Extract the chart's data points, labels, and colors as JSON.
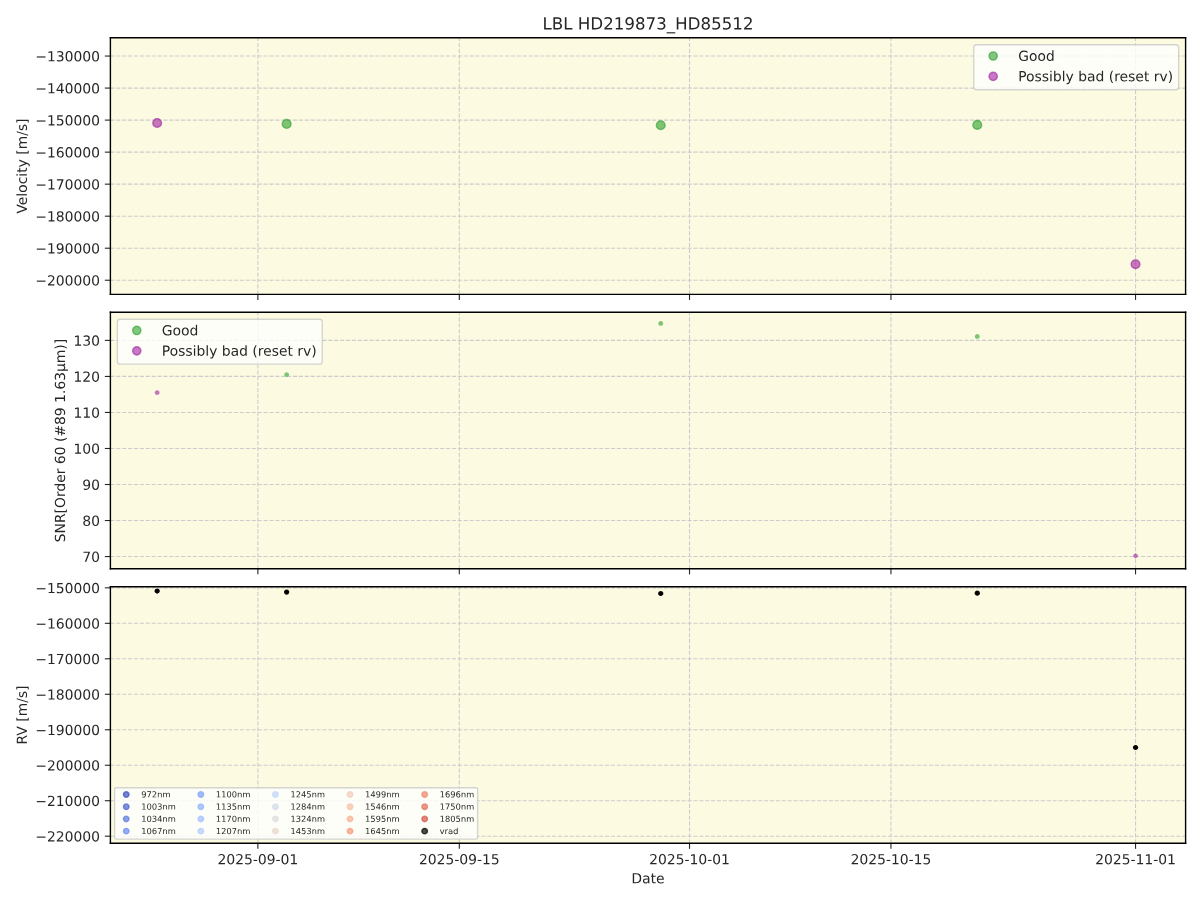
{
  "chart_data": [
    {
      "type": "scatter",
      "title": "LBL HD219873_HD85512",
      "ylabel": "Velocity [m/s]",
      "x": [
        "2025-08-25",
        "2025-09-03",
        "2025-09-29",
        "2025-10-21",
        "2025-11-01"
      ],
      "xlim": [
        "2025-08-21T18:00",
        "2025-11-04T11:30"
      ],
      "xticks": [
        {
          "value": "2025-09-01",
          "label": null
        },
        {
          "value": "2025-09-15",
          "label": null
        },
        {
          "value": "2025-10-01",
          "label": null
        },
        {
          "value": "2025-10-15",
          "label": null
        },
        {
          "value": "2025-11-01",
          "label": null
        }
      ],
      "ylim": [
        -204400,
        -124300
      ],
      "yticks": [
        -200000,
        -190000,
        -180000,
        -170000,
        -160000,
        -150000,
        -140000,
        -130000
      ],
      "tick_labels": "y",
      "grid": true,
      "legend": "top right",
      "marker": "circle",
      "series": [
        {
          "name": "Good",
          "color": "#2ca02c",
          "values": [
            null,
            -151200,
            -151600,
            -151500,
            null
          ]
        },
        {
          "name": "Possibly bad (reset rv)",
          "color": "#a020a0",
          "values": [
            -150900,
            null,
            null,
            null,
            -195000
          ]
        }
      ]
    },
    {
      "type": "scatter",
      "ylabel": "SNR[Order 60 (#89 1.63μm)]",
      "x": [
        "2025-08-25",
        "2025-09-03",
        "2025-09-29",
        "2025-10-21",
        "2025-11-01"
      ],
      "xlim": [
        "2025-08-21T18:00",
        "2025-11-04T11:30"
      ],
      "xticks": [
        {
          "value": "2025-09-01",
          "label": null
        },
        {
          "value": "2025-09-15",
          "label": null
        },
        {
          "value": "2025-10-01",
          "label": null
        },
        {
          "value": "2025-10-15",
          "label": null
        },
        {
          "value": "2025-11-01",
          "label": null
        }
      ],
      "ylim": [
        66.6,
        137.8
      ],
      "yticks": [
        70,
        80,
        90,
        100,
        110,
        120,
        130
      ],
      "tick_labels": "y",
      "grid": true,
      "legend": "top left",
      "marker": "circle",
      "series": [
        {
          "name": "Good",
          "color": "#2ca02c",
          "values": [
            null,
            120.5,
            134.7,
            131.1,
            null
          ]
        },
        {
          "name": "Possibly bad (reset rv)",
          "color": "#a020a0",
          "values": [
            115.5,
            null,
            null,
            null,
            70.2
          ]
        }
      ]
    },
    {
      "type": "scatter",
      "xlabel": "Date",
      "ylabel": "RV [m/s]",
      "x": [
        "2025-08-25",
        "2025-09-03",
        "2025-09-29",
        "2025-10-21",
        "2025-11-01"
      ],
      "xlim": [
        "2025-08-21T18:00",
        "2025-11-04T11:30"
      ],
      "xticks": [
        {
          "value": "2025-09-01",
          "label": "2025-09-01"
        },
        {
          "value": "2025-09-15",
          "label": "2025-09-15"
        },
        {
          "value": "2025-10-01",
          "label": "2025-10-01"
        },
        {
          "value": "2025-10-15",
          "label": "2025-10-15"
        },
        {
          "value": "2025-11-01",
          "label": "2025-11-01"
        }
      ],
      "ylim": [
        -222000,
        -149700
      ],
      "yticks": [
        -220000,
        -210000,
        -200000,
        -190000,
        -180000,
        -170000,
        -160000,
        -150000
      ],
      "grid": true,
      "legend": "bottom left",
      "marker": "circle",
      "series": [
        {
          "name": "972nm",
          "color": "#3b4cc0",
          "values": [
            null,
            null,
            null,
            null,
            null
          ]
        },
        {
          "name": "1003nm",
          "color": "#4961d2",
          "values": [
            null,
            null,
            null,
            null,
            null
          ]
        },
        {
          "name": "1034nm",
          "color": "#5977e3",
          "values": [
            null,
            null,
            null,
            null,
            null
          ]
        },
        {
          "name": "1067nm",
          "color": "#6a8bef",
          "values": [
            null,
            null,
            null,
            null,
            null
          ]
        },
        {
          "name": "1100nm",
          "color": "#7b9ff9",
          "values": [
            null,
            null,
            null,
            null,
            null
          ]
        },
        {
          "name": "1135nm",
          "color": "#8db0fe",
          "values": [
            null,
            null,
            null,
            null,
            null
          ]
        },
        {
          "name": "1170nm",
          "color": "#9ebeff",
          "values": [
            null,
            null,
            null,
            null,
            null
          ]
        },
        {
          "name": "1207nm",
          "color": "#afcafc",
          "values": [
            null,
            null,
            null,
            null,
            null
          ]
        },
        {
          "name": "1245nm",
          "color": "#c0d4f5",
          "values": [
            null,
            null,
            null,
            null,
            null
          ]
        },
        {
          "name": "1284nm",
          "color": "#d1dae9",
          "values": [
            null,
            null,
            null,
            null,
            null
          ]
        },
        {
          "name": "1324nm",
          "color": "#dddcdc",
          "values": [
            null,
            null,
            null,
            null,
            null
          ]
        },
        {
          "name": "1453nm",
          "color": "#e8d6cc",
          "values": [
            null,
            null,
            null,
            null,
            null
          ]
        },
        {
          "name": "1499nm",
          "color": "#f1ccb8",
          "values": [
            null,
            null,
            null,
            null,
            null
          ]
        },
        {
          "name": "1546nm",
          "color": "#f5c0a3",
          "values": [
            null,
            null,
            null,
            null,
            null
          ]
        },
        {
          "name": "1595nm",
          "color": "#f7b194",
          "values": [
            null,
            null,
            null,
            null,
            null
          ]
        },
        {
          "name": "1645nm",
          "color": "#f49a7b",
          "values": [
            null,
            null,
            null,
            null,
            null
          ]
        },
        {
          "name": "1696nm",
          "color": "#ee8468",
          "values": [
            null,
            null,
            null,
            null,
            null
          ]
        },
        {
          "name": "1750nm",
          "color": "#e36c55",
          "values": [
            null,
            null,
            null,
            null,
            null
          ]
        },
        {
          "name": "1805nm",
          "color": "#d65244",
          "values": [
            null,
            null,
            null,
            null,
            null
          ]
        },
        {
          "name": "vrad",
          "color": "#000000",
          "values": [
            -150900,
            -151200,
            -151600,
            -151500,
            -195000
          ]
        }
      ]
    }
  ]
}
